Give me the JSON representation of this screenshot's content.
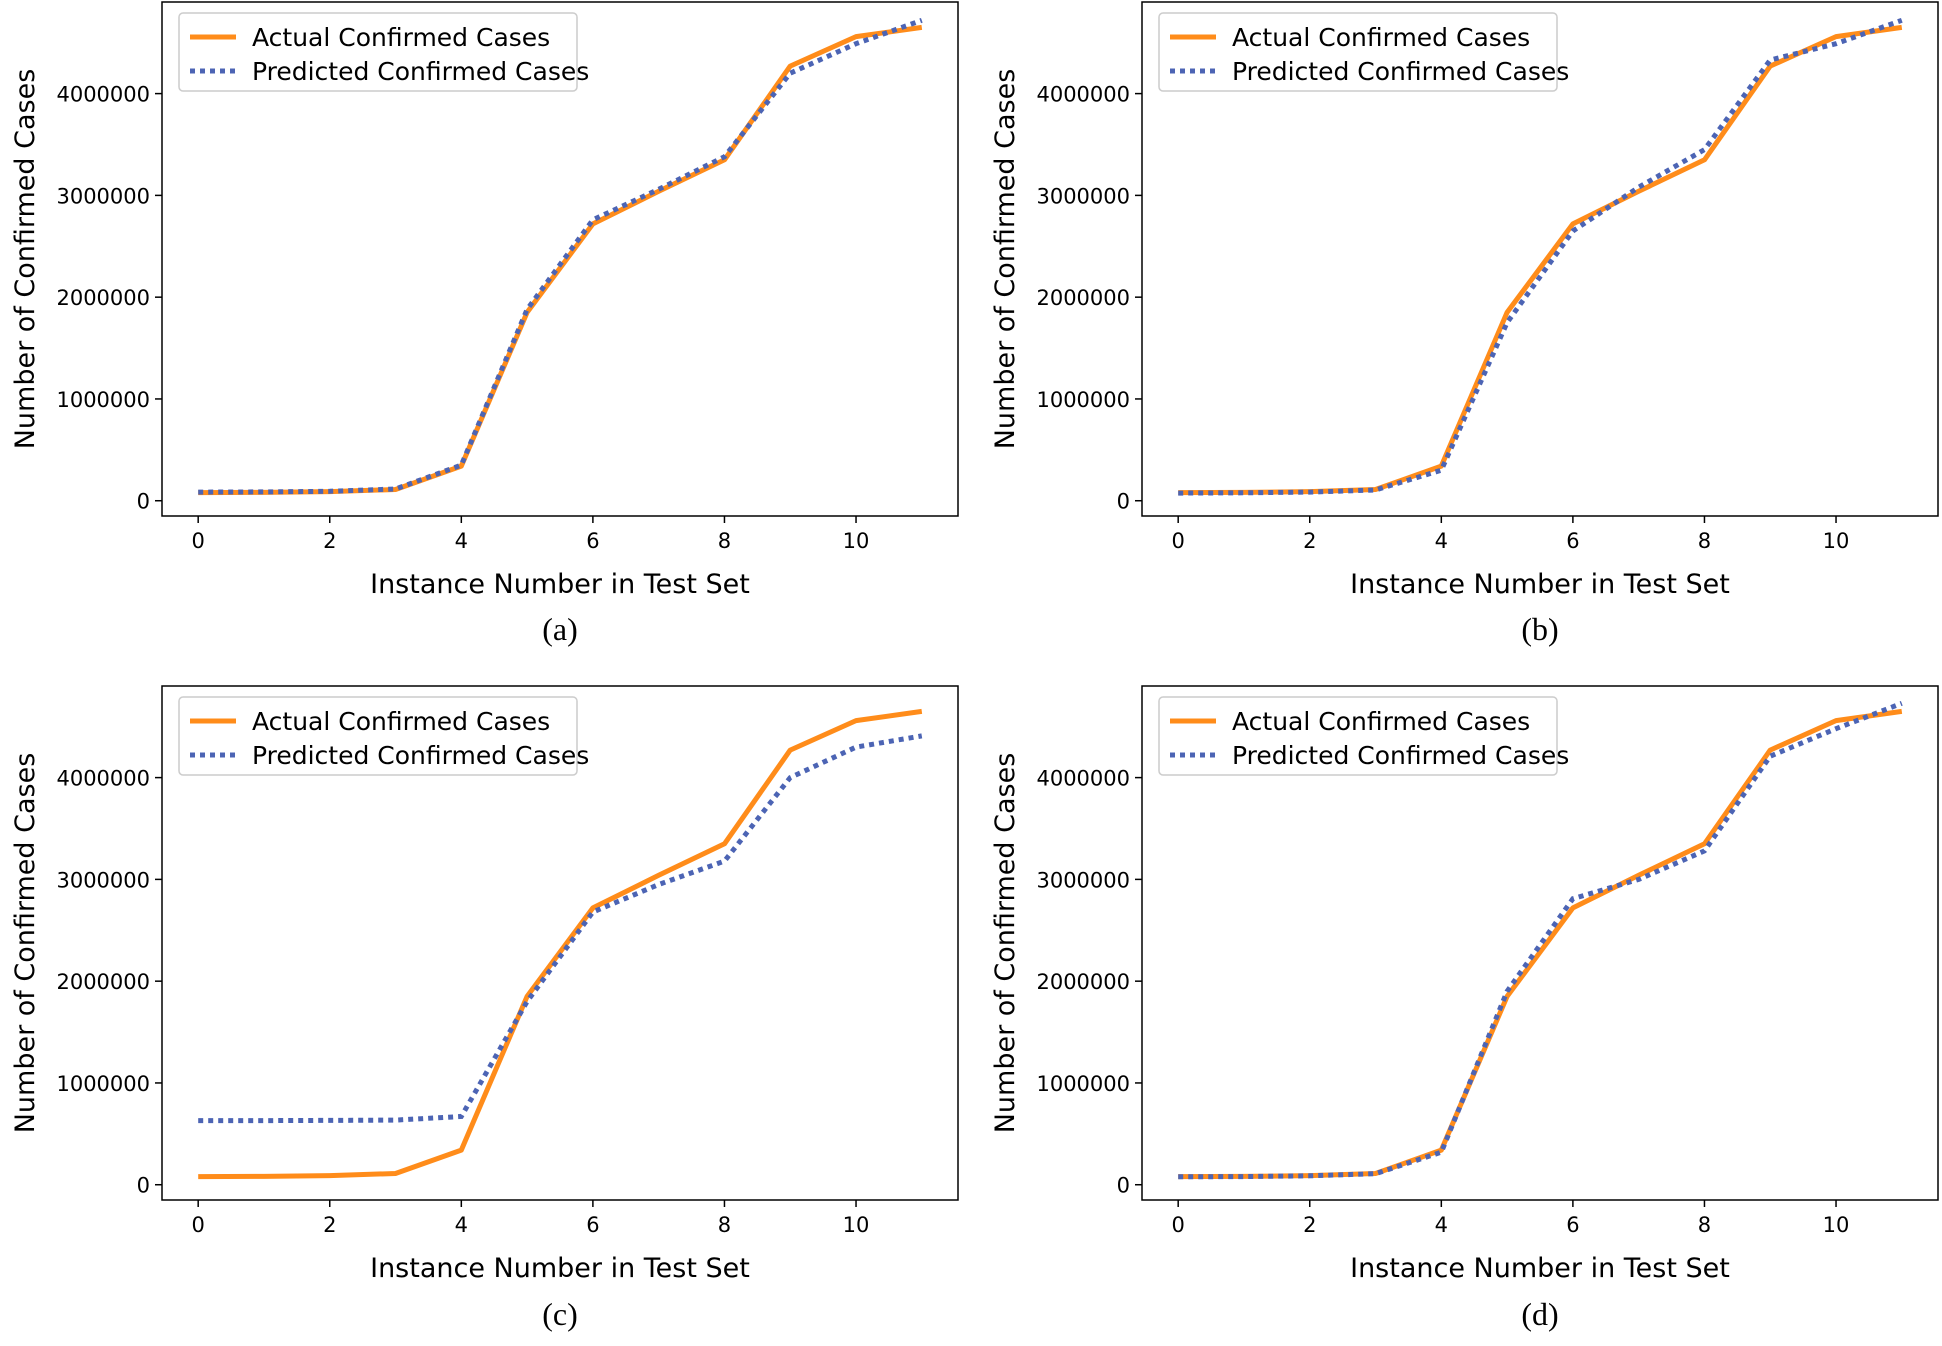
{
  "chart_data": [
    {
      "type": "line",
      "caption": "(a)",
      "xlabel": "Instance Number in Test Set",
      "ylabel": "Number of Confirmed Cases",
      "xlim": [
        -0.55,
        11.55
      ],
      "ylim": [
        -150000,
        4900000
      ],
      "xticks": [
        0,
        2,
        4,
        6,
        8,
        10
      ],
      "xtick_labels": [
        "0",
        "2",
        "4",
        "6",
        "8",
        "10"
      ],
      "yticks": [
        0,
        1000000,
        2000000,
        3000000,
        4000000
      ],
      "ytick_labels": [
        "0",
        "1000000",
        "2000000",
        "3000000",
        "4000000"
      ],
      "grid": false,
      "legend": "top-left",
      "x": [
        0,
        1,
        2,
        3,
        4,
        5,
        6,
        7,
        8,
        9,
        10,
        11
      ],
      "series": [
        {
          "name": "Actual Confirmed Cases",
          "color": "#ff8c1a",
          "style": "solid",
          "values": [
            80000,
            82000,
            90000,
            110000,
            340000,
            1850000,
            2720000,
            3040000,
            3350000,
            4270000,
            4560000,
            4650000
          ]
        },
        {
          "name": "Predicted Confirmed Cases",
          "color": "#4c64b4",
          "style": "dotted",
          "values": [
            85000,
            87000,
            93000,
            115000,
            350000,
            1880000,
            2760000,
            3060000,
            3380000,
            4200000,
            4490000,
            4720000
          ]
        }
      ]
    },
    {
      "type": "line",
      "caption": "(b)",
      "xlabel": "Instance Number in Test Set",
      "ylabel": "Number of Confirmed Cases",
      "xlim": [
        -0.55,
        11.55
      ],
      "ylim": [
        -150000,
        4900000
      ],
      "xticks": [
        0,
        2,
        4,
        6,
        8,
        10
      ],
      "xtick_labels": [
        "0",
        "2",
        "4",
        "6",
        "8",
        "10"
      ],
      "yticks": [
        0,
        1000000,
        2000000,
        3000000,
        4000000
      ],
      "ytick_labels": [
        "0",
        "1000000",
        "2000000",
        "3000000",
        "4000000"
      ],
      "grid": false,
      "legend": "top-left",
      "x": [
        0,
        1,
        2,
        3,
        4,
        5,
        6,
        7,
        8,
        9,
        10,
        11
      ],
      "series": [
        {
          "name": "Actual Confirmed Cases",
          "color": "#ff8c1a",
          "style": "solid",
          "values": [
            80000,
            82000,
            90000,
            110000,
            340000,
            1850000,
            2720000,
            3040000,
            3350000,
            4270000,
            4560000,
            4650000
          ]
        },
        {
          "name": "Predicted Confirmed Cases",
          "color": "#4c64b4",
          "style": "dotted",
          "values": [
            75000,
            78000,
            85000,
            105000,
            300000,
            1750000,
            2650000,
            3080000,
            3450000,
            4330000,
            4490000,
            4720000
          ]
        }
      ]
    },
    {
      "type": "line",
      "caption": "(c)",
      "xlabel": "Instance Number in Test Set",
      "ylabel": "Number of Confirmed Cases",
      "xlim": [
        -0.55,
        11.55
      ],
      "ylim": [
        -150000,
        4900000
      ],
      "xticks": [
        0,
        2,
        4,
        6,
        8,
        10
      ],
      "xtick_labels": [
        "0",
        "2",
        "4",
        "6",
        "8",
        "10"
      ],
      "yticks": [
        0,
        1000000,
        2000000,
        3000000,
        4000000
      ],
      "ytick_labels": [
        "0",
        "1000000",
        "2000000",
        "3000000",
        "4000000"
      ],
      "grid": false,
      "legend": "top-left",
      "x": [
        0,
        1,
        2,
        3,
        4,
        5,
        6,
        7,
        8,
        9,
        10,
        11
      ],
      "series": [
        {
          "name": "Actual Confirmed Cases",
          "color": "#ff8c1a",
          "style": "solid",
          "values": [
            80000,
            82000,
            90000,
            110000,
            340000,
            1850000,
            2720000,
            3040000,
            3350000,
            4270000,
            4560000,
            4650000
          ]
        },
        {
          "name": "Predicted Confirmed Cases",
          "color": "#4c64b4",
          "style": "dotted",
          "values": [
            630000,
            630000,
            632000,
            635000,
            670000,
            1800000,
            2680000,
            2950000,
            3180000,
            4000000,
            4300000,
            4410000
          ]
        }
      ]
    },
    {
      "type": "line",
      "caption": "(d)",
      "xlabel": "Instance Number in Test Set",
      "ylabel": "Number of Confirmed Cases",
      "xlim": [
        -0.55,
        11.55
      ],
      "ylim": [
        -150000,
        4900000
      ],
      "xticks": [
        0,
        2,
        4,
        6,
        8,
        10
      ],
      "xtick_labels": [
        "0",
        "2",
        "4",
        "6",
        "8",
        "10"
      ],
      "yticks": [
        0,
        1000000,
        2000000,
        3000000,
        4000000
      ],
      "ytick_labels": [
        "0",
        "1000000",
        "2000000",
        "3000000",
        "4000000"
      ],
      "grid": false,
      "legend": "top-left",
      "x": [
        0,
        1,
        2,
        3,
        4,
        5,
        6,
        7,
        8,
        9,
        10,
        11
      ],
      "series": [
        {
          "name": "Actual Confirmed Cases",
          "color": "#ff8c1a",
          "style": "solid",
          "values": [
            80000,
            82000,
            90000,
            110000,
            340000,
            1850000,
            2720000,
            3040000,
            3350000,
            4270000,
            4560000,
            4650000
          ]
        },
        {
          "name": "Predicted Confirmed Cases",
          "color": "#4c64b4",
          "style": "dotted",
          "values": [
            78000,
            80000,
            88000,
            108000,
            320000,
            1900000,
            2810000,
            3000000,
            3280000,
            4210000,
            4480000,
            4730000
          ]
        }
      ]
    }
  ]
}
